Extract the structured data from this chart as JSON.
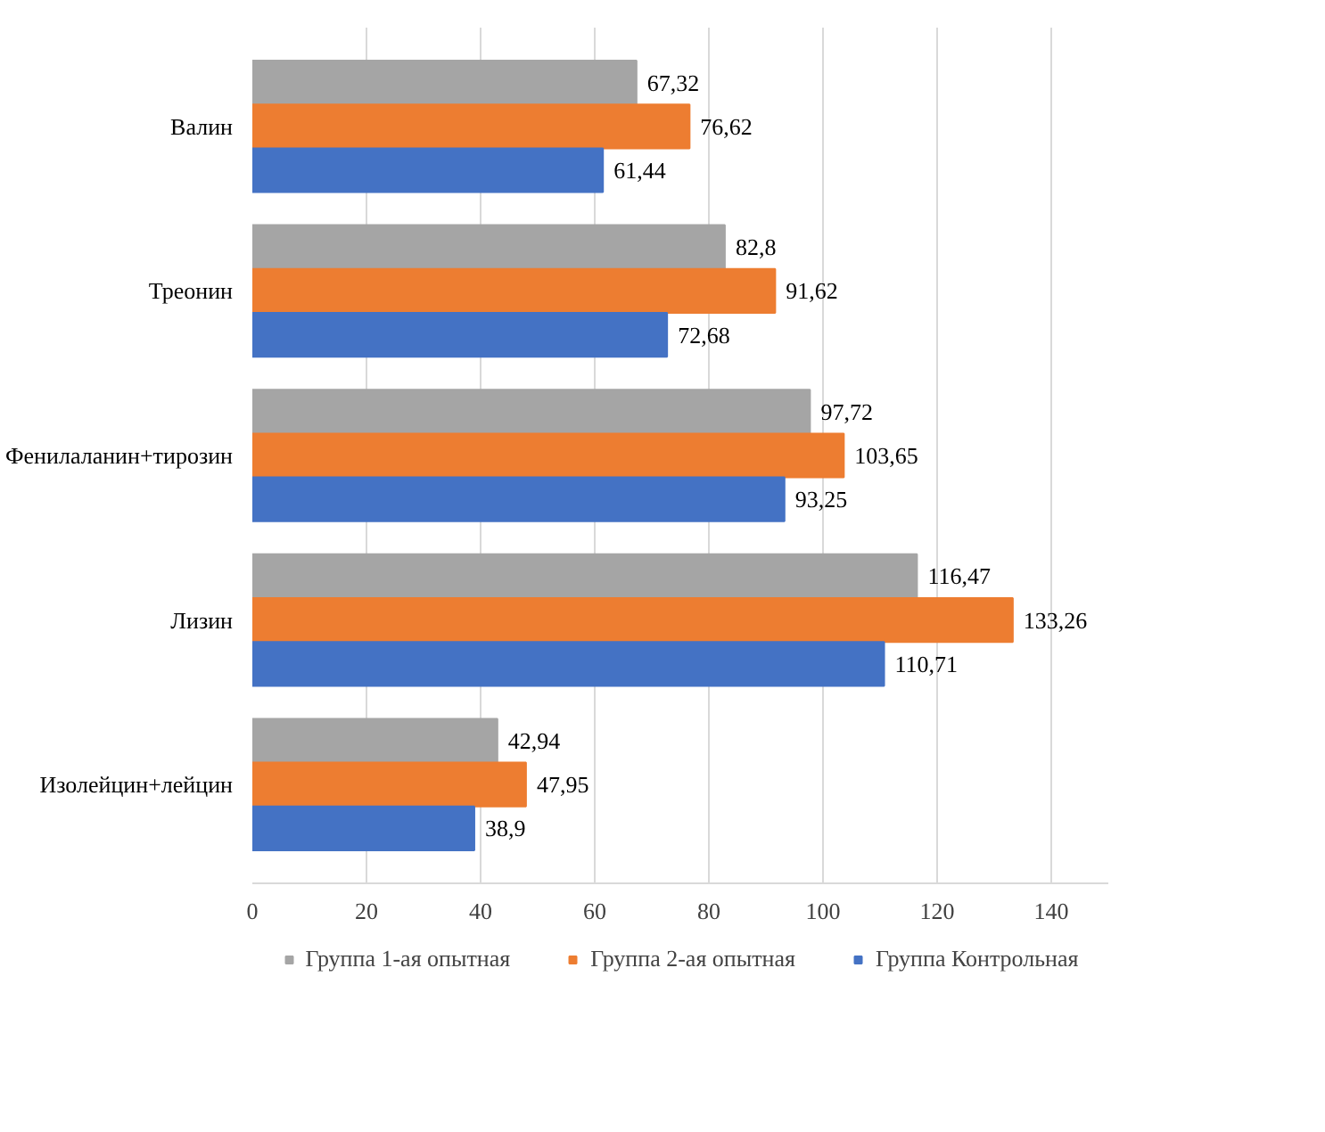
{
  "chart_data": {
    "type": "bar",
    "orientation": "horizontal",
    "categories": [
      "Валин",
      "Треонин",
      "Фенилаланин+тирозин",
      "Лизин",
      "Изолейцин+лейцин"
    ],
    "series": [
      {
        "name": "Группа 1-ая опытная",
        "color": "#a5a5a5",
        "values": [
          67.32,
          82.8,
          97.72,
          116.47,
          42.94
        ],
        "value_labels": [
          "67,32",
          "82,8",
          "97,72",
          "116,47",
          "42,94"
        ]
      },
      {
        "name": "Группа 2-ая опытная",
        "color": "#ed7d31",
        "values": [
          76.62,
          91.62,
          103.65,
          133.26,
          47.95
        ],
        "value_labels": [
          "76,62",
          "91,62",
          "103,65",
          "133,26",
          "47,95"
        ]
      },
      {
        "name": "Группа Контрольная",
        "color": "#4472c4",
        "values": [
          61.44,
          72.68,
          93.25,
          110.71,
          38.9
        ],
        "value_labels": [
          "61,44",
          "72,68",
          "93,25",
          "110,71",
          "38,9"
        ]
      }
    ],
    "xlim": [
      0,
      150
    ],
    "xticks": [
      0,
      20,
      40,
      60,
      80,
      100,
      120,
      140
    ],
    "grid": "x",
    "legend": "bottom"
  }
}
